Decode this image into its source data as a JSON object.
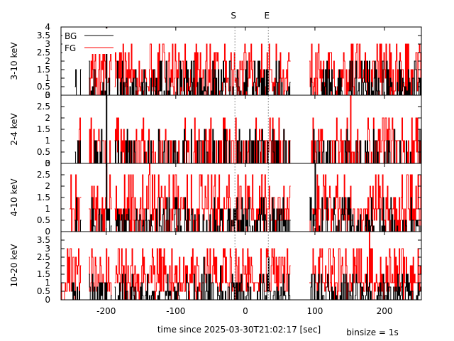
{
  "chart_data": {
    "type": "line",
    "style": "step histogram, 4 stacked panels sharing x axis",
    "xlabel": "time since 2025-03-30T21:02:17 [sec]",
    "footnote": "binsize = 1s",
    "xlim": [
      -265,
      253
    ],
    "xticks": [
      -200,
      -100,
      0,
      100,
      200
    ],
    "markers": [
      {
        "label": "S",
        "x": -15
      },
      {
        "label": "E",
        "x": 33
      }
    ],
    "gaps": [
      [
        -236,
        -225
      ],
      [
        -192,
        -188
      ],
      [
        65,
        92
      ]
    ],
    "colors": {
      "BG": "#000000",
      "FG": "#ff0000",
      "markers": "#999999"
    },
    "legend": {
      "placement": "top-left",
      "entries": [
        "BG",
        "FG"
      ]
    },
    "panels": [
      {
        "ylabel": "3-10 keV",
        "ylim": [
          0,
          4
        ],
        "yticks": [
          "0",
          "0.5",
          "1",
          "1.5",
          "2",
          "2.5",
          "3",
          "3.5",
          "4"
        ],
        "series": [
          {
            "name": "BG",
            "seed": 11,
            "p0": 0.62,
            "levels": [
              0.25,
              0.5,
              0.75,
              1,
              1.5,
              2
            ],
            "extra": [
              [
                -200,
                4
              ]
            ],
            "endx": -245,
            "endv": 0.5
          },
          {
            "name": "FG",
            "seed": 12,
            "p0": 0.18,
            "levels": [
              0.25,
              0.5,
              0.75,
              1,
              1,
              1.5,
              1.5,
              2,
              2.5,
              3
            ],
            "extra": [
              [
                -200,
                4
              ],
              [
                -137,
                3
              ],
              [
                -105,
                3
              ],
              [
                -51,
                3
              ],
              [
                160,
                3
              ]
            ],
            "endx": -226,
            "endv": 1
          }
        ]
      },
      {
        "ylabel": "2-4 keV",
        "ylim": [
          0,
          3
        ],
        "yticks": [
          "0",
          "0.5",
          "1",
          "1.5",
          "2",
          "2.5",
          "3"
        ],
        "series": [
          {
            "name": "BG",
            "seed": 21,
            "p0": 0.72,
            "levels": [
              0.5,
              1,
              1,
              1,
              1.5
            ],
            "extra": [
              [
                -200,
                3
              ]
            ],
            "endx": -245,
            "endv": 0.5
          },
          {
            "name": "FG",
            "seed": 22,
            "p0": 0.5,
            "levels": [
              0.5,
              1,
              1,
              1,
              1,
              1.5,
              2
            ],
            "extra": [
              [
                -175,
                1.5
              ],
              [
                -124,
                1.5
              ],
              [
                -57,
                1.5
              ],
              [
                -23,
                1.5
              ],
              [
                151,
                3
              ],
              [
                206,
                2
              ]
            ],
            "endx": -242,
            "endv": 1
          }
        ]
      },
      {
        "ylabel": "4-10 keV",
        "ylim": [
          0,
          3
        ],
        "yticks": [
          "0",
          "0.5",
          "1",
          "1.5",
          "2",
          "2.5",
          "3"
        ],
        "series": [
          {
            "name": "BG",
            "seed": 31,
            "p0": 0.6,
            "levels": [
              0.25,
              0.5,
              0.75,
              1,
              1.5
            ],
            "extra": [
              [
                -200,
                3
              ],
              [
                100,
                3
              ]
            ],
            "endx": -245,
            "endv": 0.5
          },
          {
            "name": "FG",
            "seed": 32,
            "p0": 0.2,
            "levels": [
              0.5,
              0.5,
              1,
              1,
              1,
              1.5,
              2,
              2.5
            ],
            "extra": [
              [
                -200,
                3
              ],
              [
                -138,
                3
              ],
              [
                -101,
                2.5
              ],
              [
                -66,
                2.5
              ],
              [
                -54,
                2.5
              ],
              [
                187,
                2.5
              ]
            ],
            "endx": -253,
            "endv": 1
          }
        ]
      },
      {
        "ylabel": "10-20 keV",
        "ylim": [
          0,
          4
        ],
        "yticks": [
          "0",
          "0.5",
          "1",
          "1.5",
          "2",
          "2.5",
          "3",
          "3.5"
        ],
        "series": [
          {
            "name": "BG",
            "seed": 41,
            "p0": 0.6,
            "levels": [
              0.25,
              0.5,
              0.75,
              1,
              1.5
            ],
            "extra": [
              [
                -60,
                2.5
              ],
              [
                -36,
                2
              ],
              [
                33,
                2.5
              ],
              [
                95,
                1.5
              ]
            ],
            "endx": -250,
            "endv": 0.5
          },
          {
            "name": "FG",
            "seed": 42,
            "p0": 0.1,
            "levels": [
              0.5,
              0.5,
              1,
              1,
              1,
              1.5,
              2,
              2.5,
              3
            ],
            "extra": [
              [
                -148,
                3
              ],
              [
                -14,
                3
              ],
              [
                -4,
                3
              ],
              [
                60,
                3
              ],
              [
                178,
                4
              ],
              [
                160,
                3
              ]
            ],
            "endx": -265,
            "endv": 1
          }
        ]
      }
    ]
  }
}
